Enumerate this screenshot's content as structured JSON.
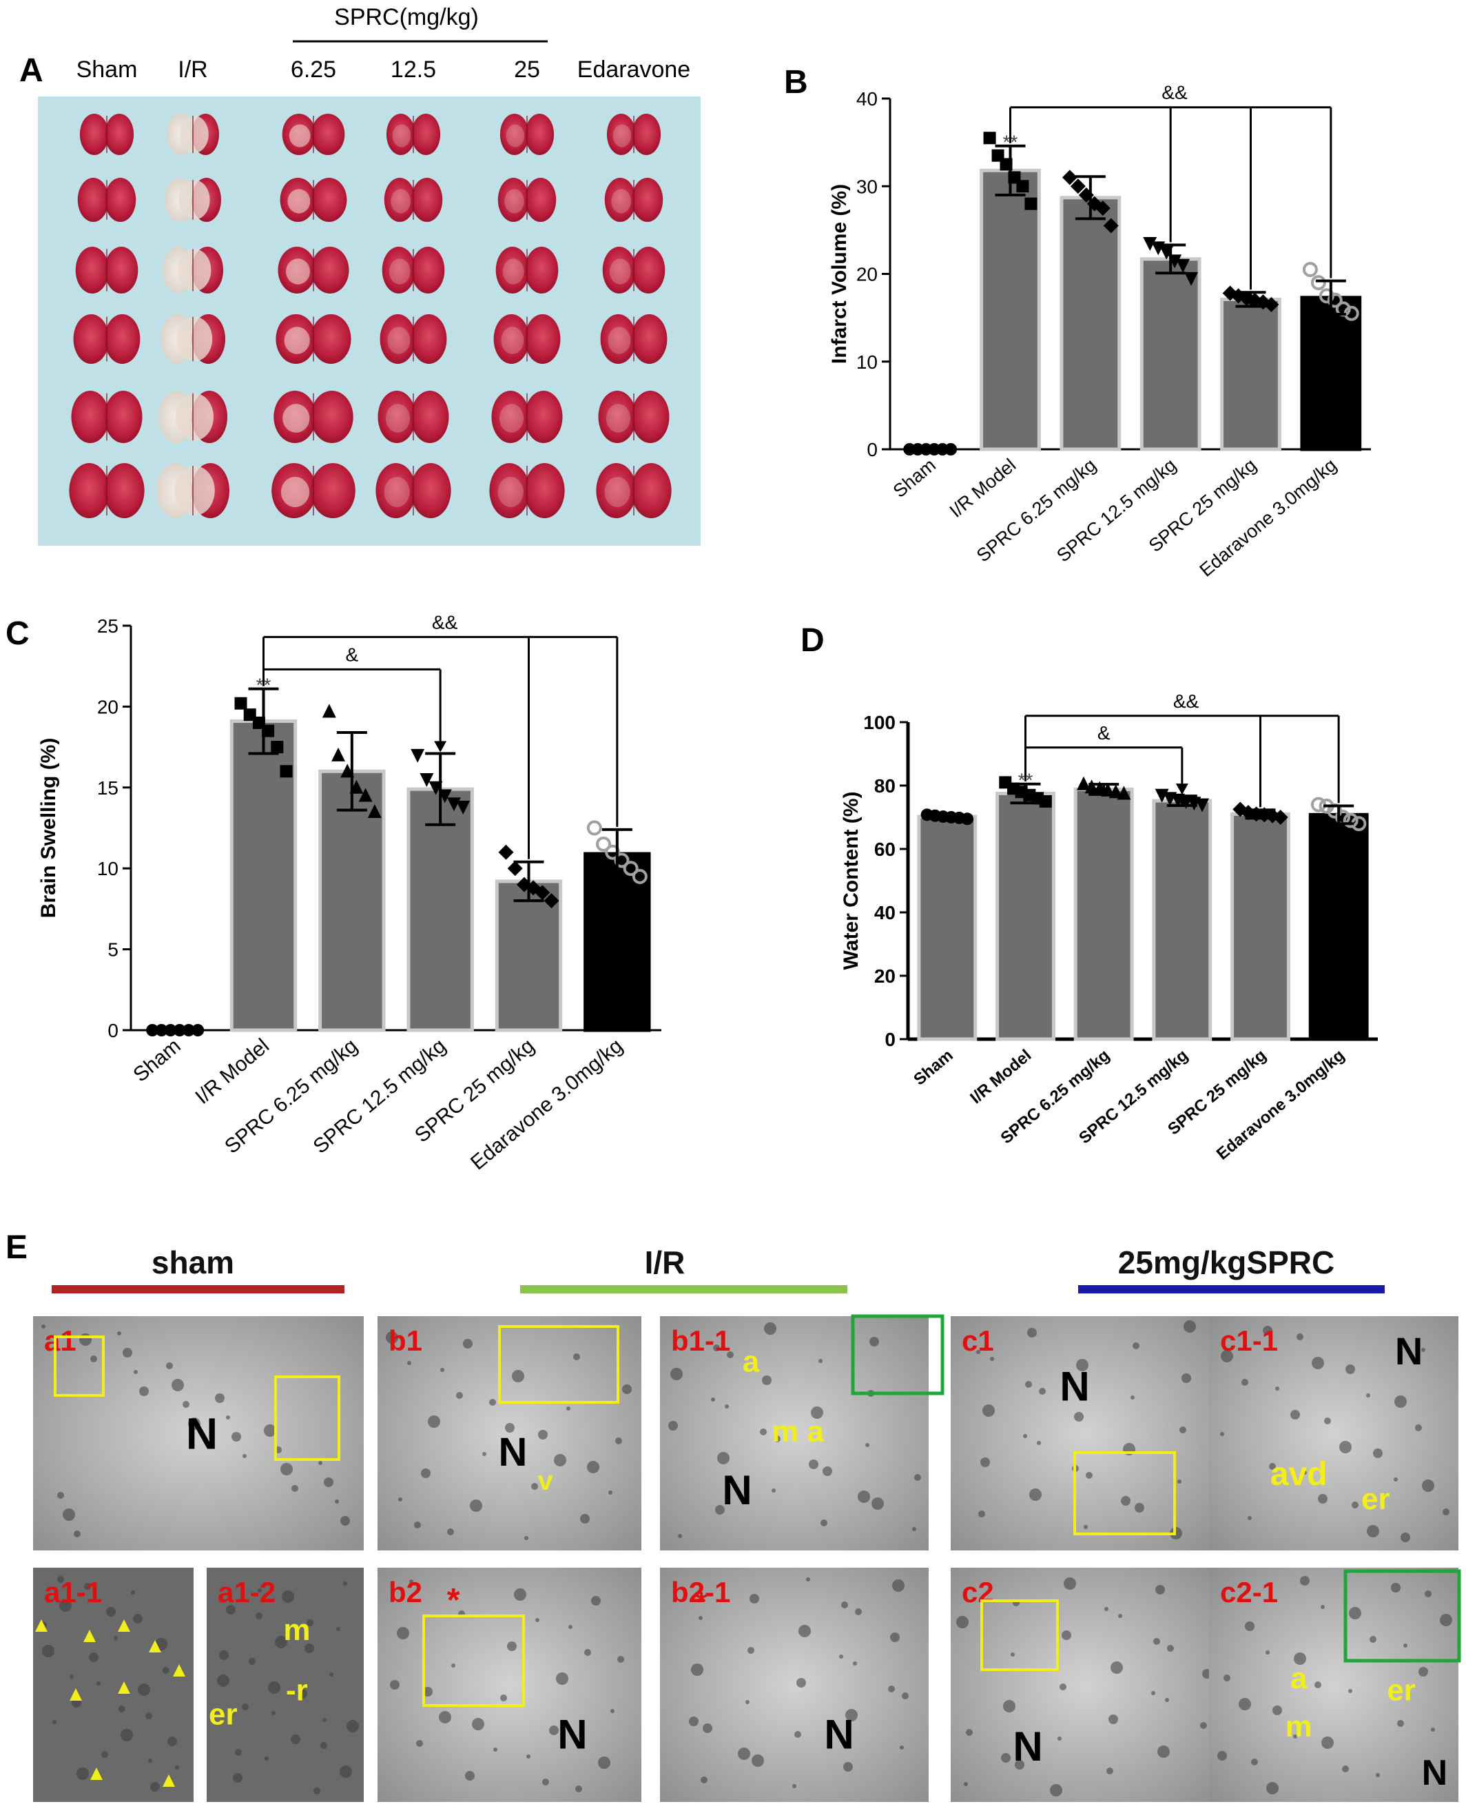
{
  "panelA": {
    "letter": "A",
    "group_header": "SPRC(mg/kg)",
    "columns": [
      "Sham",
      "I/R",
      "6.25",
      "12.5",
      "25",
      "Edaravone"
    ]
  },
  "chart_data": [
    {
      "panel": "B",
      "type": "bar",
      "ylabel": "Infarct Volume (%)",
      "ylim": [
        0,
        40
      ],
      "yticks": [
        "0",
        "10",
        "20",
        "30",
        "40"
      ],
      "categories": [
        "Sham",
        "I/R Model",
        "SPRC 6.25 mg/kg",
        "SPRC 12.5 mg/kg",
        "SPRC 25 mg/kg",
        "Edaravone 3.0mg/kg"
      ],
      "values": [
        0,
        31.8,
        28.7,
        21.7,
        17.1,
        17.3
      ],
      "errors": [
        0,
        2.8,
        2.4,
        1.6,
        0.8,
        1.9
      ],
      "points": [
        [
          0,
          0,
          0,
          0,
          0,
          0
        ],
        [
          35.5,
          33.5,
          32.5,
          31.0,
          30.0,
          28.0
        ],
        [
          31.0,
          30.0,
          29.0,
          28.0,
          27.5,
          25.5
        ],
        [
          23.5,
          23.0,
          22.5,
          21.5,
          21.0,
          19.5
        ],
        [
          17.8,
          17.5,
          17.2,
          17.0,
          16.8,
          16.5
        ],
        [
          20.5,
          19.0,
          17.5,
          17.0,
          16.0,
          15.5
        ]
      ],
      "markers": [
        "circle",
        "square",
        "diamond",
        "triangle-down",
        "diamond",
        "open-circle"
      ],
      "bar_colors": [
        "#6e6e6e",
        "#6e6e6e",
        "#6e6e6e",
        "#6e6e6e",
        "#6e6e6e",
        "#000000"
      ],
      "significance": [
        {
          "label": "**",
          "index": 1
        }
      ],
      "brackets": [
        {
          "label": "&&",
          "from": 1,
          "to": [
            3,
            4,
            5
          ],
          "level": 39
        }
      ]
    },
    {
      "panel": "C",
      "type": "bar",
      "ylabel": "Brain Swelling (%)",
      "ylim": [
        0,
        25
      ],
      "yticks": [
        "0",
        "5",
        "10",
        "15",
        "20",
        "25"
      ],
      "categories": [
        "Sham",
        "I/R Model",
        "SPRC 6.25 mg/kg",
        "SPRC 12.5 mg/kg",
        "SPRC 25 mg/kg",
        "Edaravone 3.0mg/kg"
      ],
      "values": [
        0,
        19.1,
        16.0,
        14.9,
        9.2,
        10.9
      ],
      "errors": [
        0,
        2.0,
        2.4,
        2.2,
        1.2,
        1.5
      ],
      "points": [
        [
          0,
          0,
          0,
          0,
          0,
          0
        ],
        [
          20.2,
          19.5,
          19.0,
          18.5,
          17.5,
          16.0
        ],
        [
          19.7,
          17.0,
          16.0,
          15.0,
          14.5,
          13.5
        ],
        [
          17.0,
          15.5,
          15.0,
          14.5,
          14.0,
          13.8
        ],
        [
          11.0,
          10.0,
          9.0,
          8.8,
          8.5,
          8.0
        ],
        [
          12.5,
          11.5,
          11.0,
          10.5,
          10.0,
          9.5
        ]
      ],
      "markers": [
        "circle",
        "square",
        "triangle-up",
        "triangle-down",
        "diamond",
        "open-circle"
      ],
      "bar_colors": [
        "#6e6e6e",
        "#6e6e6e",
        "#6e6e6e",
        "#6e6e6e",
        "#6e6e6e",
        "#000000"
      ],
      "significance": [
        {
          "label": "**",
          "index": 1
        }
      ],
      "brackets": [
        {
          "label": "&",
          "from": 1,
          "to": [
            3
          ],
          "level": 22.3
        },
        {
          "label": "&&",
          "from": 1,
          "to": [
            4,
            5
          ],
          "level": 24.3
        }
      ]
    },
    {
      "panel": "D",
      "type": "bar",
      "ylabel": "Water Content (%)",
      "ylim": [
        0,
        100
      ],
      "yticks": [
        "0",
        "20",
        "40",
        "60",
        "80",
        "100"
      ],
      "categories": [
        "Sham",
        "I/R Model",
        "SPRC 6.25 mg/kg",
        "SPRC 12.5 mg/kg",
        "SPRC 25 mg/kg",
        "Edaravone 3.0mg/kg"
      ],
      "values": [
        70.2,
        77.5,
        78.8,
        75.2,
        71.0,
        70.8
      ],
      "errors": [
        0.7,
        3.0,
        1.6,
        1.5,
        1.3,
        2.8
      ],
      "points": [
        [
          70.8,
          70.5,
          70.2,
          70.0,
          69.8,
          69.5
        ],
        [
          81.0,
          79.0,
          78.0,
          77.0,
          76.0,
          75.0
        ],
        [
          80.5,
          79.5,
          79.0,
          78.5,
          78.0,
          77.5
        ],
        [
          77.0,
          76.0,
          75.5,
          75.0,
          74.5,
          74.0
        ],
        [
          72.5,
          71.5,
          71.0,
          70.8,
          70.5,
          70.0
        ],
        [
          74.0,
          73.5,
          72.0,
          70.0,
          69.0,
          68.0
        ]
      ],
      "markers": [
        "circle",
        "square",
        "triangle-up",
        "triangle-down",
        "diamond",
        "open-circle"
      ],
      "bar_colors": [
        "#6e6e6e",
        "#6e6e6e",
        "#6e6e6e",
        "#6e6e6e",
        "#6e6e6e",
        "#000000"
      ],
      "significance": [
        {
          "label": "**",
          "index": 1
        }
      ],
      "brackets": [
        {
          "label": "&",
          "from": 1,
          "to": [
            3
          ],
          "level": 92
        },
        {
          "label": "&&",
          "from": 1,
          "to": [
            4,
            5
          ],
          "level": 102
        }
      ]
    }
  ],
  "panelE": {
    "letter": "E",
    "groups": [
      {
        "label": "sham",
        "color": "#b22222"
      },
      {
        "label": "I/R",
        "color": "#8bc34a"
      },
      {
        "label": "25mg/kgSPRC",
        "color": "#1a1aa6"
      }
    ],
    "tiles": [
      {
        "id": "a1",
        "marks": [
          "N"
        ]
      },
      {
        "id": "b1",
        "marks": [
          "N",
          "v"
        ]
      },
      {
        "id": "b1-1",
        "marks": [
          "a",
          "m a",
          "N"
        ]
      },
      {
        "id": "c1",
        "marks": [
          "N"
        ]
      },
      {
        "id": "c1-1",
        "marks": [
          "N",
          "avd",
          "er"
        ]
      },
      {
        "id": "a1-1",
        "marks": []
      },
      {
        "id": "a1-2",
        "marks": [
          "m",
          "-r",
          "er"
        ]
      },
      {
        "id": "b2",
        "marks": [
          "*",
          "N"
        ]
      },
      {
        "id": "b2-1",
        "marks": [
          "*",
          "N"
        ]
      },
      {
        "id": "c2",
        "marks": [
          "N"
        ]
      },
      {
        "id": "c2-1",
        "marks": [
          "a",
          "er",
          "m",
          "N"
        ]
      }
    ]
  }
}
